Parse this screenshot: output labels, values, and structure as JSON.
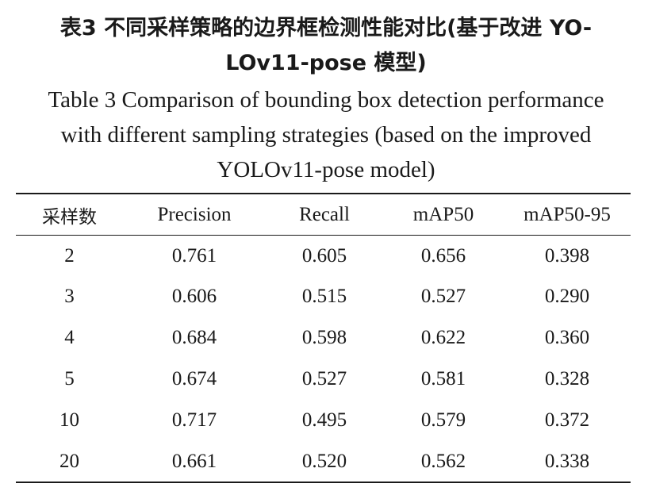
{
  "caption": {
    "zh_line1": "表3  不同采样策略的边界框检测性能对比(基于改进 YO-",
    "zh_line2": "LOv11-pose 模型)",
    "en_line1": "Table 3  Comparison of bounding box detection performance",
    "en_line2": "with different sampling strategies (based on the improved",
    "en_line3": "YOLOv11-pose model)"
  },
  "table": {
    "headers": [
      "采样数",
      "Precision",
      "Recall",
      "mAP50",
      "mAP50-95"
    ],
    "rows": [
      [
        "2",
        "0.761",
        "0.605",
        "0.656",
        "0.398"
      ],
      [
        "3",
        "0.606",
        "0.515",
        "0.527",
        "0.290"
      ],
      [
        "4",
        "0.684",
        "0.598",
        "0.622",
        "0.360"
      ],
      [
        "5",
        "0.674",
        "0.527",
        "0.581",
        "0.328"
      ],
      [
        "10",
        "0.717",
        "0.495",
        "0.579",
        "0.372"
      ],
      [
        "20",
        "0.661",
        "0.520",
        "0.562",
        "0.338"
      ]
    ]
  }
}
